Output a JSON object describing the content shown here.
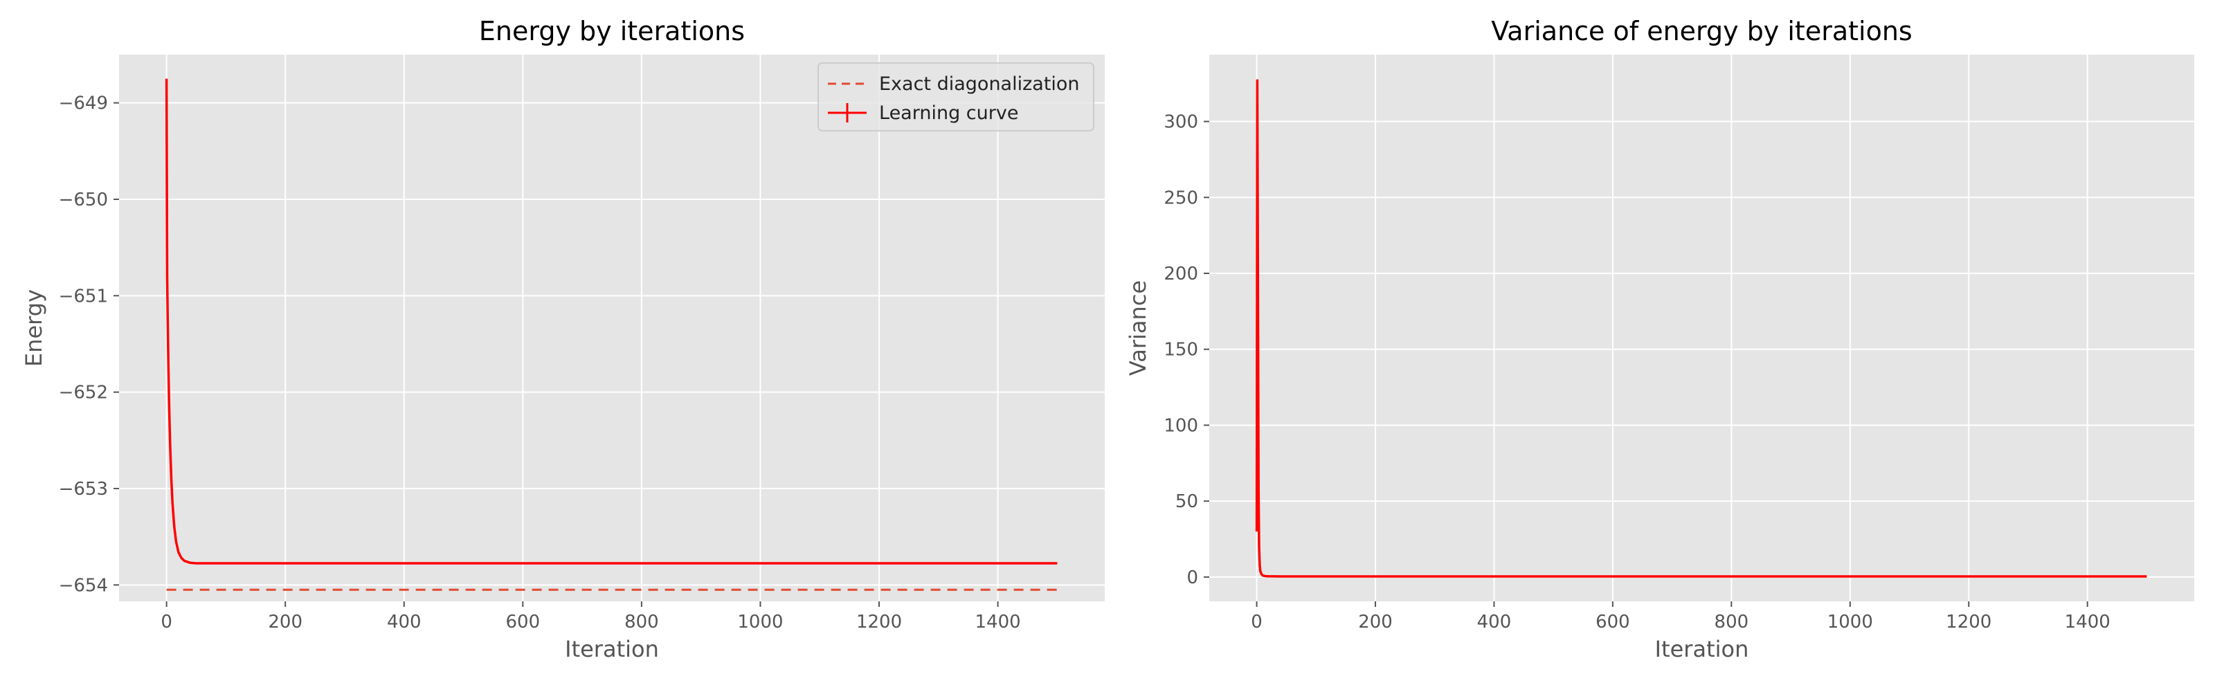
{
  "colors": {
    "axes_bg": "#E5E5E5",
    "grid": "#FFFFFF",
    "tick_text": "#555555",
    "label_text": "#555555",
    "title_text": "#000000",
    "curve": "#FF0000",
    "exact": "#E24A33"
  },
  "chart_data": [
    {
      "type": "line",
      "title": "Energy by iterations",
      "xlabel": "Iteration",
      "ylabel": "Energy",
      "xlim": [
        -80,
        1580
      ],
      "ylim": [
        -654.17,
        -648.5
      ],
      "xticks": [
        0,
        200,
        400,
        600,
        800,
        1000,
        1200,
        1400
      ],
      "yticks": [
        -654,
        -653,
        -652,
        -651,
        -650,
        -649
      ],
      "grid": true,
      "legend": "top-right",
      "series": [
        {
          "name": "Exact diagonalization",
          "style": "dashed",
          "x": [
            0,
            1500
          ],
          "y": [
            -654.05,
            -654.05
          ]
        },
        {
          "name": "Learning curve",
          "style": "solid-errorbar",
          "x": [
            0,
            1,
            2,
            3,
            4,
            5,
            6,
            8,
            10,
            13,
            16,
            20,
            25,
            30,
            35,
            40,
            50,
            60,
            80,
            100,
            150,
            200,
            300,
            400,
            500,
            600,
            700,
            800,
            900,
            1000,
            1100,
            1200,
            1300,
            1400,
            1500
          ],
          "y": [
            -648.75,
            -650.8,
            -651.25,
            -651.7,
            -652.05,
            -652.3,
            -652.55,
            -652.9,
            -653.15,
            -653.4,
            -653.55,
            -653.66,
            -653.72,
            -653.75,
            -653.76,
            -653.77,
            -653.775,
            -653.775,
            -653.775,
            -653.775,
            -653.775,
            -653.775,
            -653.775,
            -653.775,
            -653.775,
            -653.775,
            -653.775,
            -653.775,
            -653.775,
            -653.775,
            -653.775,
            -653.775,
            -653.775,
            -653.775,
            -653.775
          ]
        }
      ]
    },
    {
      "type": "line",
      "title": "Variance of energy by iterations",
      "xlabel": "Iteration",
      "ylabel": "Variance",
      "xlim": [
        -80,
        1580
      ],
      "ylim": [
        -16,
        344
      ],
      "xticks": [
        0,
        200,
        400,
        600,
        800,
        1000,
        1200,
        1400
      ],
      "yticks": [
        0,
        50,
        100,
        150,
        200,
        250,
        300
      ],
      "grid": true,
      "series": [
        {
          "style": "solid",
          "x": [
            0,
            1,
            2,
            3,
            4,
            5,
            6,
            8,
            10,
            15,
            20,
            40,
            100,
            200,
            400,
            600,
            800,
            1000,
            1200,
            1400,
            1500
          ],
          "y": [
            30,
            327,
            200,
            60,
            20,
            8,
            4,
            2,
            1,
            0.6,
            0.5,
            0.4,
            0.4,
            0.4,
            0.4,
            0.4,
            0.4,
            0.4,
            0.4,
            0.4,
            0.4
          ]
        }
      ]
    }
  ]
}
